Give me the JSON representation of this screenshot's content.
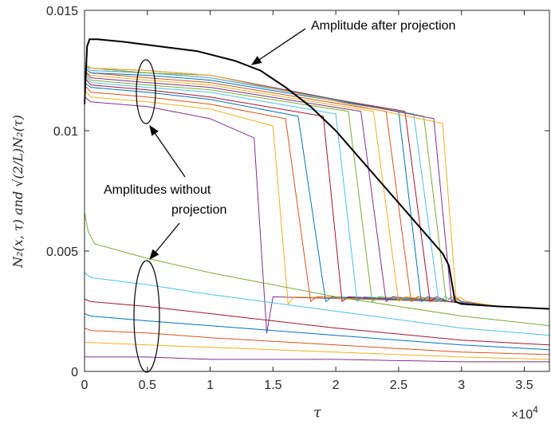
{
  "chart_data": {
    "type": "line",
    "xlabel": "τ",
    "ylabel": "N₂(x, τ) and √(2/L)N₂(τ)",
    "x_multiplier": "×10",
    "x_multiplier_exp": "4",
    "xlim": [
      0,
      3.7
    ],
    "ylim": [
      0,
      0.015
    ],
    "xticks": [
      0,
      0.5,
      1,
      1.5,
      2,
      2.5,
      3,
      3.5
    ],
    "xtick_labels": [
      "0",
      "0.5",
      "1",
      "1.5",
      "2",
      "2.5",
      "3",
      "3.5"
    ],
    "yticks": [
      0,
      0.005,
      0.01,
      0.015
    ],
    "ytick_labels": [
      "0",
      "0.005",
      "0.01",
      "0.015"
    ],
    "grid": false,
    "annotations": [
      {
        "text": "Amplitude after projection",
        "target": [
          1.3,
          0.0128
        ]
      },
      {
        "text": "Amplitudes without",
        "target": [
          0.5,
          0.0116
        ]
      },
      {
        "text": "projection",
        "target": [
          0.5,
          0.0026
        ]
      }
    ],
    "series_colors": [
      "#7E2F8E",
      "#EDB120",
      "#D95319",
      "#0072BD",
      "#A2142F",
      "#4DBEEE",
      "#77AC30"
    ],
    "series": [
      {
        "name": "Amplitude after projection",
        "color": "#000000",
        "x": [
          0,
          0.02,
          0.04,
          0.1,
          0.3,
          0.6,
          0.9,
          1.2,
          1.4,
          1.6,
          1.8,
          2.0,
          2.2,
          2.4,
          2.6,
          2.8,
          2.85,
          2.9,
          2.95,
          3.0,
          3.3,
          3.7
        ],
        "y": [
          0.0111,
          0.0135,
          0.0138,
          0.0138,
          0.0137,
          0.0135,
          0.0133,
          0.0129,
          0.0125,
          0.0118,
          0.011,
          0.01,
          0.0088,
          0.0076,
          0.0064,
          0.0052,
          0.0049,
          0.0044,
          0.0029,
          0.0028,
          0.0027,
          0.0026
        ]
      },
      {
        "color": "#7E2F8E",
        "x": [
          0,
          0.05,
          0.5,
          1.0,
          1.35,
          1.45,
          1.5,
          2.9,
          3.3,
          3.7
        ],
        "y": [
          0.0114,
          0.0112,
          0.011,
          0.0105,
          0.0097,
          0.0016,
          0.0031,
          0.0029,
          0.0027,
          0.0026
        ]
      },
      {
        "color": "#EDB120",
        "x": [
          0,
          0.05,
          0.5,
          1.0,
          1.5,
          1.62,
          1.67,
          2.9,
          3.3,
          3.7
        ],
        "y": [
          0.0117,
          0.0114,
          0.0112,
          0.0109,
          0.0102,
          0.0028,
          0.0031,
          0.0029,
          0.0027,
          0.0026
        ]
      },
      {
        "color": "#D95319",
        "x": [
          0,
          0.05,
          0.5,
          1.0,
          1.6,
          1.8,
          1.85,
          2.9,
          3.3,
          3.7
        ],
        "y": [
          0.0119,
          0.0116,
          0.0114,
          0.0111,
          0.0105,
          0.0029,
          0.0031,
          0.0029,
          0.0027,
          0.0026
        ]
      },
      {
        "color": "#0072BD",
        "x": [
          0,
          0.05,
          0.5,
          1.0,
          1.7,
          1.92,
          1.97,
          2.9,
          3.3,
          3.7
        ],
        "y": [
          0.012,
          0.0118,
          0.0116,
          0.0113,
          0.0106,
          0.0029,
          0.0031,
          0.0029,
          0.0027,
          0.0026
        ]
      },
      {
        "color": "#A2142F",
        "x": [
          0,
          0.05,
          0.5,
          1.0,
          1.9,
          2.05,
          2.1,
          2.9,
          3.3,
          3.7
        ],
        "y": [
          0.0122,
          0.0119,
          0.0117,
          0.0114,
          0.0106,
          0.0029,
          0.0031,
          0.0029,
          0.0027,
          0.0026
        ]
      },
      {
        "color": "#4DBEEE",
        "x": [
          0,
          0.05,
          0.5,
          1.0,
          2.0,
          2.17,
          2.22,
          2.9,
          3.3,
          3.7
        ],
        "y": [
          0.0123,
          0.012,
          0.0118,
          0.0116,
          0.0107,
          0.0029,
          0.0031,
          0.0029,
          0.0027,
          0.0026
        ]
      },
      {
        "color": "#77AC30",
        "x": [
          0,
          0.05,
          0.5,
          1.0,
          2.1,
          2.29,
          2.34,
          2.9,
          3.3,
          3.7
        ],
        "y": [
          0.0124,
          0.0121,
          0.0119,
          0.0117,
          0.0108,
          0.0029,
          0.0031,
          0.0029,
          0.0027,
          0.0026
        ]
      },
      {
        "color": "#7E2F8E",
        "x": [
          0,
          0.05,
          0.5,
          1.0,
          2.2,
          2.4,
          2.45,
          2.9,
          3.3,
          3.7
        ],
        "y": [
          0.0125,
          0.0122,
          0.012,
          0.0118,
          0.0108,
          0.0029,
          0.0031,
          0.0029,
          0.0027,
          0.0026
        ]
      },
      {
        "color": "#EDB120",
        "x": [
          0,
          0.05,
          0.5,
          1.0,
          2.3,
          2.5,
          2.55,
          2.9,
          3.3,
          3.7
        ],
        "y": [
          0.0125,
          0.0123,
          0.0121,
          0.0119,
          0.0108,
          0.0029,
          0.0031,
          0.0029,
          0.0027,
          0.0026
        ]
      },
      {
        "color": "#D95319",
        "x": [
          0,
          0.05,
          0.5,
          1.0,
          2.4,
          2.6,
          2.65,
          2.9,
          3.3,
          3.7
        ],
        "y": [
          0.0126,
          0.0124,
          0.0122,
          0.012,
          0.0108,
          0.0029,
          0.0031,
          0.0029,
          0.0027,
          0.0026
        ]
      },
      {
        "color": "#0072BD",
        "x": [
          0,
          0.05,
          0.5,
          1.0,
          2.5,
          2.68,
          2.73,
          2.9,
          3.3,
          3.7
        ],
        "y": [
          0.0126,
          0.0124,
          0.0123,
          0.0121,
          0.0108,
          0.0029,
          0.0031,
          0.0029,
          0.0027,
          0.0026
        ]
      },
      {
        "color": "#A2142F",
        "x": [
          0,
          0.05,
          0.5,
          1.0,
          2.55,
          2.75,
          2.8,
          2.9,
          3.3,
          3.7
        ],
        "y": [
          0.0127,
          0.0125,
          0.0124,
          0.0122,
          0.0108,
          0.0029,
          0.0031,
          0.0029,
          0.0027,
          0.0026
        ]
      },
      {
        "color": "#4DBEEE",
        "x": [
          0,
          0.05,
          0.5,
          1.0,
          2.62,
          2.82,
          2.87,
          2.95,
          3.3,
          3.7
        ],
        "y": [
          0.0127,
          0.0125,
          0.0124,
          0.0122,
          0.0107,
          0.0029,
          0.0031,
          0.0029,
          0.0027,
          0.0026
        ]
      },
      {
        "color": "#77AC30",
        "x": [
          0,
          0.05,
          0.5,
          1.0,
          2.7,
          2.88,
          2.92,
          3.0,
          3.3,
          3.7
        ],
        "y": [
          0.0127,
          0.0126,
          0.0124,
          0.0123,
          0.0106,
          0.0029,
          0.0031,
          0.0029,
          0.0027,
          0.0026
        ]
      },
      {
        "color": "#7E2F8E",
        "x": [
          0,
          0.05,
          0.5,
          1.0,
          2.78,
          2.92,
          2.95,
          3.0,
          3.3,
          3.7
        ],
        "y": [
          0.0128,
          0.0126,
          0.0125,
          0.0123,
          0.0105,
          0.0029,
          0.0031,
          0.0029,
          0.0027,
          0.0026
        ]
      },
      {
        "color": "#EDB120",
        "x": [
          0,
          0.05,
          0.5,
          1.0,
          2.85,
          2.96,
          2.98,
          3.05,
          3.3,
          3.7
        ],
        "y": [
          0.0128,
          0.0126,
          0.0125,
          0.0123,
          0.0103,
          0.0029,
          0.0031,
          0.0029,
          0.0027,
          0.0026
        ]
      },
      {
        "color": "#7E2F8E",
        "x": [
          0,
          0.05,
          0.5,
          1.0,
          2.0,
          3.0,
          3.7
        ],
        "y": [
          0.0006,
          0.0006,
          0.0006,
          0.0005,
          0.0005,
          0.0004,
          0.0004
        ]
      },
      {
        "color": "#EDB120",
        "x": [
          0,
          0.05,
          0.5,
          1.0,
          2.0,
          3.0,
          3.7
        ],
        "y": [
          0.0012,
          0.0012,
          0.0011,
          0.001,
          0.0008,
          0.0006,
          0.0005
        ]
      },
      {
        "color": "#D95319",
        "x": [
          0,
          0.05,
          0.5,
          1.0,
          2.0,
          3.0,
          3.7
        ],
        "y": [
          0.0018,
          0.0017,
          0.0016,
          0.0014,
          0.0011,
          0.0008,
          0.0007
        ]
      },
      {
        "color": "#0072BD",
        "x": [
          0,
          0.05,
          0.5,
          1.0,
          2.0,
          3.0,
          3.7
        ],
        "y": [
          0.0024,
          0.0023,
          0.0021,
          0.0019,
          0.0015,
          0.0011,
          0.0009
        ]
      },
      {
        "color": "#A2142F",
        "x": [
          0,
          0.05,
          0.5,
          1.0,
          2.0,
          3.0,
          3.7
        ],
        "y": [
          0.003,
          0.0029,
          0.0027,
          0.0024,
          0.0018,
          0.0013,
          0.0011
        ]
      },
      {
        "color": "#4DBEEE",
        "x": [
          0,
          0.05,
          0.5,
          1.0,
          2.0,
          3.0,
          3.7
        ],
        "y": [
          0.0041,
          0.0039,
          0.0036,
          0.0032,
          0.0025,
          0.0018,
          0.0015
        ]
      },
      {
        "color": "#77AC30",
        "x": [
          0,
          0.03,
          0.08,
          0.5,
          1.0,
          2.0,
          3.0,
          3.7
        ],
        "y": [
          0.0066,
          0.0058,
          0.0053,
          0.0047,
          0.0041,
          0.0031,
          0.0023,
          0.0019
        ]
      }
    ]
  }
}
